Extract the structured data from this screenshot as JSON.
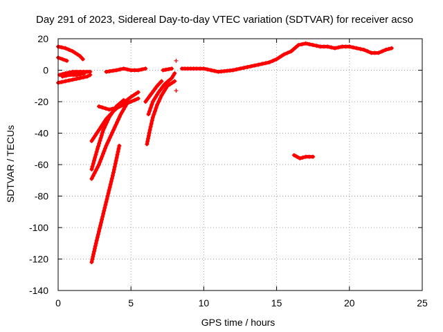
{
  "chart_data": {
    "type": "scatter",
    "title": "Day 291 of 2023, Sidereal Day-to-day VTEC variation (SDTVAR) for receiver acso",
    "xlabel": "GPS time / hours",
    "ylabel": "SDTVAR / TECUs",
    "xlim": [
      0,
      25
    ],
    "ylim": [
      -140,
      20
    ],
    "xticks": [
      0,
      5,
      10,
      15,
      20,
      25
    ],
    "yticks": [
      -140,
      -120,
      -100,
      -80,
      -60,
      -40,
      -20,
      0,
      20
    ],
    "grid": true,
    "marker": "+",
    "color": "#ff0000",
    "segments": [
      [
        [
          0.0,
          15
        ],
        [
          0.5,
          14
        ],
        [
          1.0,
          12
        ],
        [
          1.5,
          9
        ],
        [
          1.7,
          7
        ]
      ],
      [
        [
          0.0,
          8
        ],
        [
          0.3,
          7
        ],
        [
          0.6,
          6
        ]
      ],
      [
        [
          0.1,
          -3
        ],
        [
          0.5,
          -2
        ],
        [
          1.0,
          -1
        ],
        [
          1.5,
          -1
        ],
        [
          2.0,
          -1
        ],
        [
          2.2,
          -1
        ]
      ],
      [
        [
          0.0,
          -8
        ],
        [
          0.5,
          -7
        ],
        [
          1.0,
          -6
        ],
        [
          1.5,
          -5
        ],
        [
          2.0,
          -4
        ],
        [
          2.2,
          -3
        ]
      ],
      [
        [
          0.3,
          -4
        ],
        [
          0.8,
          -3
        ],
        [
          1.3,
          -3
        ],
        [
          1.8,
          -2
        ]
      ],
      [
        [
          3.3,
          -1
        ],
        [
          4.0,
          0
        ],
        [
          4.5,
          1
        ],
        [
          5.0,
          0
        ],
        [
          5.5,
          0
        ],
        [
          6.0,
          1
        ]
      ],
      [
        [
          7.2,
          0
        ],
        [
          7.8,
          1
        ]
      ],
      [
        [
          8.5,
          1
        ],
        [
          9.5,
          1
        ],
        [
          10.0,
          1
        ],
        [
          10.5,
          0
        ],
        [
          11.0,
          -1
        ],
        [
          12.0,
          0
        ],
        [
          12.5,
          1
        ],
        [
          13.0,
          2
        ],
        [
          13.5,
          3
        ],
        [
          14.0,
          4
        ],
        [
          14.5,
          5
        ],
        [
          15.0,
          7
        ],
        [
          15.5,
          10
        ],
        [
          16.0,
          12
        ],
        [
          16.5,
          16
        ],
        [
          17.0,
          17
        ],
        [
          17.5,
          16
        ],
        [
          18.0,
          15
        ],
        [
          18.5,
          15
        ],
        [
          19.0,
          14
        ],
        [
          19.5,
          15
        ],
        [
          20.0,
          15
        ],
        [
          20.5,
          14
        ],
        [
          21.0,
          13
        ],
        [
          21.5,
          11
        ],
        [
          22.0,
          11
        ],
        [
          22.5,
          13
        ],
        [
          22.9,
          14
        ]
      ],
      [
        [
          2.3,
          -122
        ],
        [
          2.6,
          -110
        ],
        [
          3.0,
          -95
        ],
        [
          3.4,
          -80
        ],
        [
          3.8,
          -65
        ],
        [
          4.2,
          -48
        ]
      ],
      [
        [
          2.3,
          -69
        ],
        [
          2.8,
          -60
        ],
        [
          3.3,
          -48
        ],
        [
          3.8,
          -38
        ],
        [
          4.3,
          -28
        ],
        [
          4.8,
          -20
        ]
      ],
      [
        [
          2.3,
          -63
        ],
        [
          2.7,
          -50
        ],
        [
          3.1,
          -38
        ],
        [
          3.5,
          -30
        ],
        [
          4.0,
          -23
        ],
        [
          4.5,
          -19
        ]
      ],
      [
        [
          2.3,
          -45
        ],
        [
          2.8,
          -38
        ],
        [
          3.3,
          -31
        ],
        [
          3.8,
          -26
        ],
        [
          4.3,
          -22
        ],
        [
          5.0,
          -17
        ],
        [
          5.5,
          -14
        ]
      ],
      [
        [
          2.8,
          -23
        ],
        [
          3.5,
          -25
        ],
        [
          4.0,
          -24
        ],
        [
          4.5,
          -22
        ],
        [
          5.0,
          -20
        ],
        [
          5.5,
          -18
        ]
      ],
      [
        [
          6.1,
          -47
        ],
        [
          6.3,
          -38
        ],
        [
          6.5,
          -30
        ],
        [
          6.8,
          -22
        ],
        [
          7.1,
          -16
        ],
        [
          7.5,
          -10
        ],
        [
          8.0,
          -7
        ]
      ],
      [
        [
          6.2,
          -28
        ],
        [
          6.5,
          -20
        ],
        [
          6.9,
          -14
        ],
        [
          7.3,
          -9
        ],
        [
          7.8,
          -5
        ],
        [
          8.0,
          -2
        ]
      ],
      [
        [
          6.0,
          -20
        ],
        [
          6.4,
          -15
        ],
        [
          6.8,
          -10
        ],
        [
          7.1,
          -7
        ]
      ],
      [
        [
          8.1,
          6
        ]
      ],
      [
        [
          8.1,
          -13
        ]
      ],
      [
        [
          16.2,
          -54
        ],
        [
          16.6,
          -56
        ],
        [
          17.0,
          -55
        ],
        [
          17.5,
          -55
        ]
      ]
    ]
  }
}
